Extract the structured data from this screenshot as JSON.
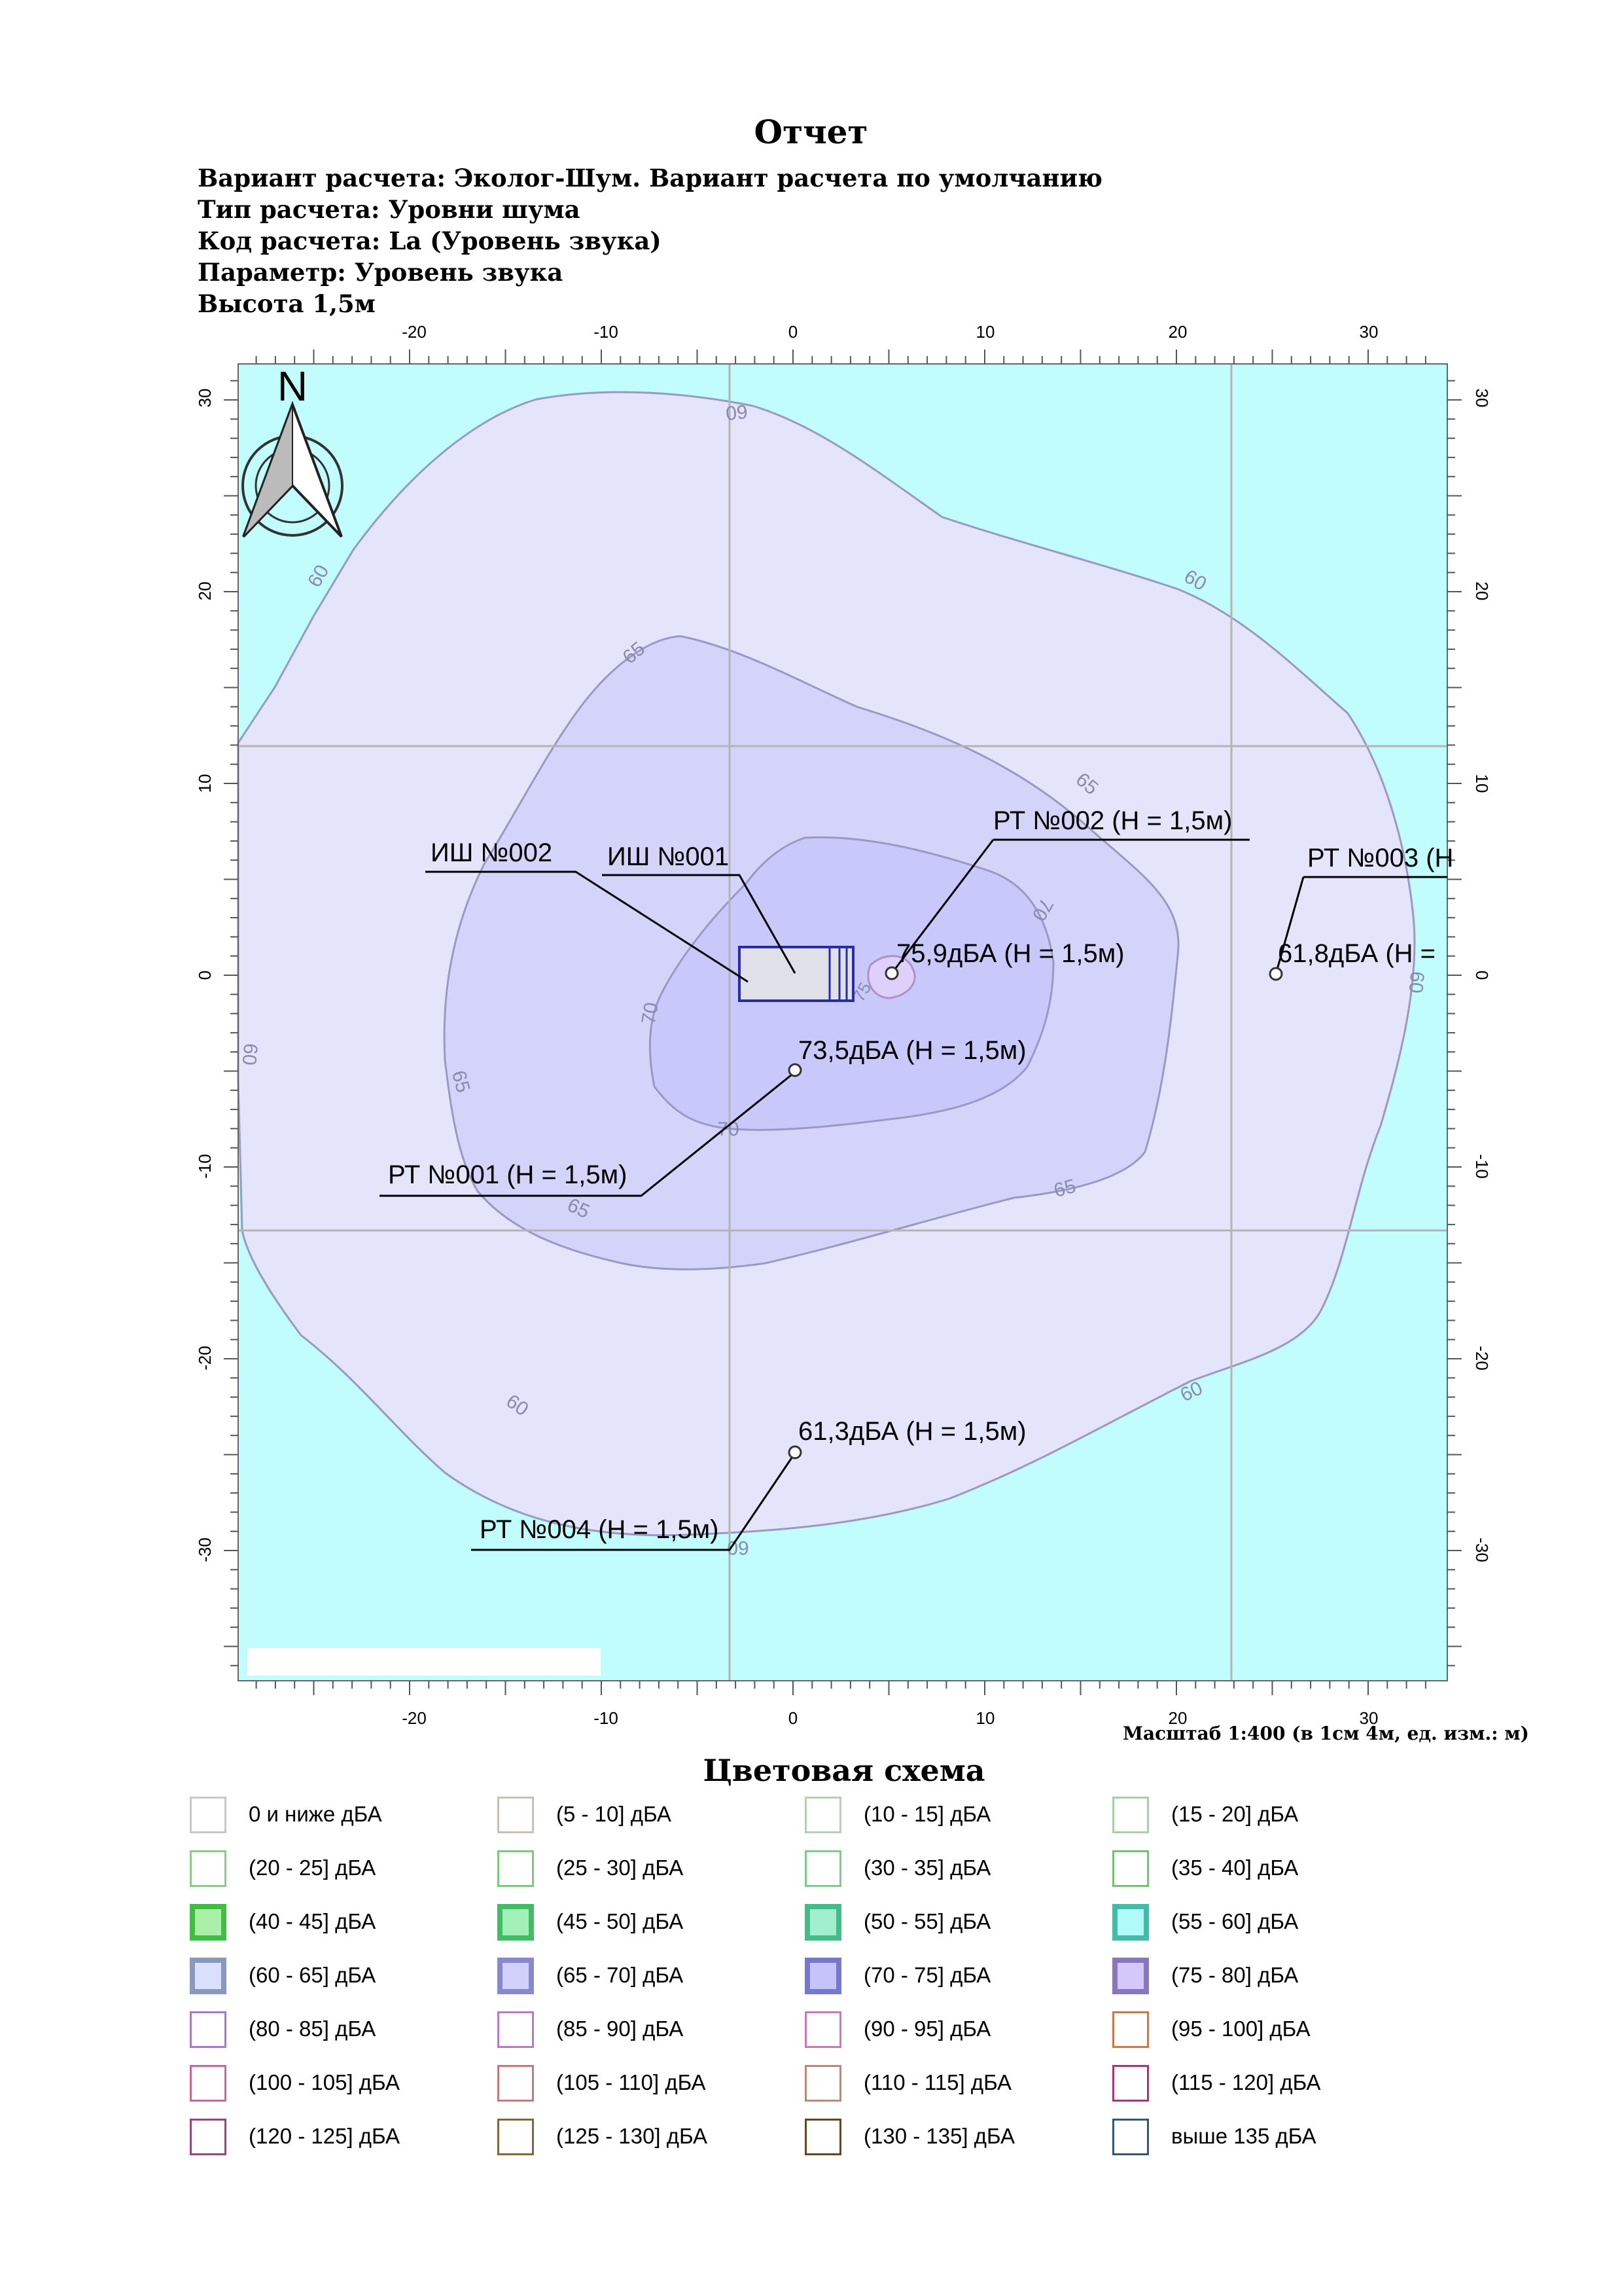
{
  "report": {
    "title": "Отчет",
    "lines": [
      "Вариант расчета: Эколог-Шум. Вариант расчета по умолчанию",
      "Тип расчета: Уровни шума",
      "Код расчета: La (Уровень звука)",
      "Параметр: Уровень звука",
      "Высота 1,5м"
    ]
  },
  "map": {
    "x_ticks": [
      "-20",
      "-10",
      "0",
      "10",
      "20",
      "30"
    ],
    "y_ticks": [
      "30",
      "20",
      "10",
      "0",
      "-10",
      "-20",
      "-30"
    ],
    "north_label": "N",
    "contour_labels": {
      "c60": "60",
      "c65": "65",
      "c70": "70",
      "c75": "75"
    },
    "sources": [
      {
        "label": "ИШ №002"
      },
      {
        "label": "ИШ №001"
      }
    ],
    "points": [
      {
        "label": "РТ №001 (H = 1,5м)",
        "value": "73,5дБА (H = 1,5м)"
      },
      {
        "label": "РТ №002 (H = 1,5м)",
        "value": "75,9дБА (H = 1,5м)"
      },
      {
        "label": "РТ №003 (Н",
        "value": "61,8дБА (H ="
      },
      {
        "label": "РТ №004 (H = 1,5м)",
        "value": "61,3дБА (H = 1,5м)"
      }
    ],
    "scale_text": "Масштаб 1:400 (в 1см 4м, ед. изм.: м)",
    "colors": {
      "background": "#c2fdfd",
      "zone60": "#e4e4fb",
      "zone65": "#d4d4fb",
      "zone70": "#c8c8fb",
      "zone75": "#ddd0fa",
      "contour": "#9999c4",
      "grid": "#b4b4b4"
    }
  },
  "legend": {
    "title": "Цветовая схема",
    "items": [
      {
        "label": "0 и ниже дБА",
        "border": "#c8c8c8",
        "fill": "#ffffff",
        "thick": false
      },
      {
        "label": "(5 - 10] дБА",
        "border": "#c8c0b0",
        "fill": "#ffffff",
        "thick": false
      },
      {
        "label": "(10 - 15] дБА",
        "border": "#b8d0b8",
        "fill": "#ffffff",
        "thick": false
      },
      {
        "label": "(15 - 20] дБА",
        "border": "#a8d0a8",
        "fill": "#ffffff",
        "thick": false
      },
      {
        "label": "(20 - 25] дБА",
        "border": "#88cc88",
        "fill": "#ffffff",
        "thick": false
      },
      {
        "label": "(25 - 30] дБА",
        "border": "#78cc78",
        "fill": "#ffffff",
        "thick": false
      },
      {
        "label": "(30 - 35] дБА",
        "border": "#7ccc90",
        "fill": "#ffffff",
        "thick": false
      },
      {
        "label": "(35 - 40] дБА",
        "border": "#70c470",
        "fill": "#ffffff",
        "thick": false
      },
      {
        "label": "(40 - 45] дБА",
        "border": "#44bb44",
        "fill": "#a8f0a8",
        "thick": true
      },
      {
        "label": "(45 - 50] дБА",
        "border": "#44bb66",
        "fill": "#a0f0b8",
        "thick": true
      },
      {
        "label": "(50 - 55] дБА",
        "border": "#44bb88",
        "fill": "#a0f0d0",
        "thick": true
      },
      {
        "label": "(55 - 60] дБА",
        "border": "#44bbaa",
        "fill": "#b0fafa",
        "thick": true
      },
      {
        "label": "(60 - 65] дБА",
        "border": "#8899bb",
        "fill": "#d8e0fb",
        "thick": true
      },
      {
        "label": "(65 - 70] дБА",
        "border": "#8888cc",
        "fill": "#d0d0fb",
        "thick": true
      },
      {
        "label": "(70 - 75] дБА",
        "border": "#7777cc",
        "fill": "#c4c4fb",
        "thick": true
      },
      {
        "label": "(75 - 80] дБА",
        "border": "#8877bb",
        "fill": "#d4c8fb",
        "thick": true
      },
      {
        "label": "(80 - 85] дБА",
        "border": "#aa77cc",
        "fill": "#ffffff",
        "thick": false
      },
      {
        "label": "(85 - 90] дБА",
        "border": "#bb77cc",
        "fill": "#ffffff",
        "thick": false
      },
      {
        "label": "(90 - 95] дБА",
        "border": "#cc77bb",
        "fill": "#ffffff",
        "thick": false
      },
      {
        "label": "(95 - 100] дБА",
        "border": "#cc7744",
        "fill": "#ffffff",
        "thick": false
      },
      {
        "label": "(100 - 105] дБА",
        "border": "#cc6699",
        "fill": "#ffffff",
        "thick": false
      },
      {
        "label": "(105 - 110] дБА",
        "border": "#cc7777",
        "fill": "#ffffff",
        "thick": false
      },
      {
        "label": "(110 - 115] дБА",
        "border": "#bb8877",
        "fill": "#ffffff",
        "thick": false
      },
      {
        "label": "(115 - 120] дБА",
        "border": "#aa3377",
        "fill": "#ffffff",
        "thick": false
      },
      {
        "label": "(120 - 125] дБА",
        "border": "#994477",
        "fill": "#ffffff",
        "thick": false
      },
      {
        "label": "(125 - 130] дБА",
        "border": "#886633",
        "fill": "#ffffff",
        "thick": false
      },
      {
        "label": "(130 - 135] дБА",
        "border": "#664422",
        "fill": "#ffffff",
        "thick": false
      },
      {
        "label": "выше 135 дБА",
        "border": "#335577",
        "fill": "#ffffff",
        "thick": false
      }
    ]
  }
}
